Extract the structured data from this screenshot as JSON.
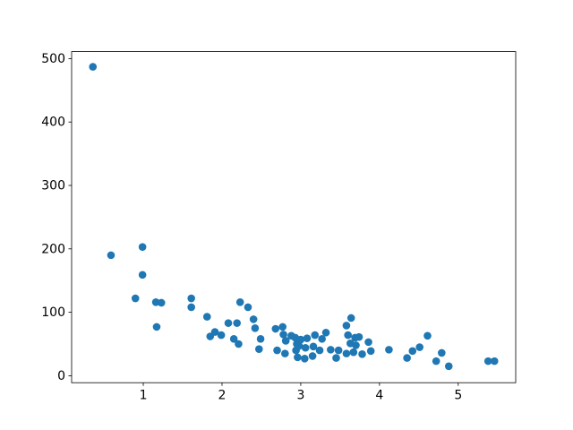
{
  "figure": {
    "background_color": "#ffffff",
    "plot_background_color": "#ffffff",
    "spine_color": "#000000",
    "tick_color": "#000000",
    "tick_label_color": "#000000"
  },
  "chart_data": {
    "type": "scatter",
    "title": "",
    "xlabel": "",
    "ylabel": "",
    "xlim": [
      0.09,
      5.73
    ],
    "ylim": [
      -11,
      511
    ],
    "xticks": [
      1,
      2,
      3,
      4,
      5
    ],
    "yticks": [
      0,
      100,
      200,
      300,
      400,
      500
    ],
    "grid": false,
    "legend_position": "none",
    "marker": {
      "color": "#1f77b4",
      "shape": "circle",
      "radius_px": 4.3
    },
    "points": [
      [
        0.36,
        487
      ],
      [
        0.59,
        190
      ],
      [
        0.9,
        122
      ],
      [
        0.99,
        203
      ],
      [
        0.99,
        159
      ],
      [
        1.16,
        116
      ],
      [
        1.17,
        77
      ],
      [
        1.23,
        115
      ],
      [
        1.61,
        122
      ],
      [
        1.61,
        108
      ],
      [
        1.81,
        93
      ],
      [
        1.85,
        62
      ],
      [
        1.91,
        69
      ],
      [
        1.99,
        64
      ],
      [
        2.08,
        83
      ],
      [
        2.15,
        58
      ],
      [
        2.19,
        83
      ],
      [
        2.21,
        50
      ],
      [
        2.23,
        116
      ],
      [
        2.33,
        108
      ],
      [
        2.4,
        89
      ],
      [
        2.42,
        75
      ],
      [
        2.47,
        42
      ],
      [
        2.49,
        58
      ],
      [
        2.68,
        74
      ],
      [
        2.7,
        40
      ],
      [
        2.77,
        77
      ],
      [
        2.78,
        65
      ],
      [
        2.8,
        35
      ],
      [
        2.81,
        55
      ],
      [
        2.88,
        63
      ],
      [
        2.93,
        60
      ],
      [
        2.94,
        40
      ],
      [
        2.95,
        50
      ],
      [
        2.96,
        29
      ],
      [
        2.98,
        47
      ],
      [
        3.0,
        57
      ],
      [
        3.05,
        27
      ],
      [
        3.06,
        44
      ],
      [
        3.08,
        59
      ],
      [
        3.15,
        31
      ],
      [
        3.16,
        46
      ],
      [
        3.18,
        64
      ],
      [
        3.24,
        40
      ],
      [
        3.27,
        58
      ],
      [
        3.32,
        68
      ],
      [
        3.38,
        41
      ],
      [
        3.45,
        28
      ],
      [
        3.48,
        40
      ],
      [
        3.58,
        79
      ],
      [
        3.58,
        35
      ],
      [
        3.6,
        64
      ],
      [
        3.63,
        51
      ],
      [
        3.64,
        91
      ],
      [
        3.67,
        37
      ],
      [
        3.69,
        60
      ],
      [
        3.7,
        48
      ],
      [
        3.74,
        61
      ],
      [
        3.78,
        34
      ],
      [
        3.86,
        53
      ],
      [
        3.89,
        39
      ],
      [
        4.12,
        41
      ],
      [
        4.35,
        28
      ],
      [
        4.42,
        39
      ],
      [
        4.51,
        45
      ],
      [
        4.61,
        63
      ],
      [
        4.72,
        23
      ],
      [
        4.79,
        36
      ],
      [
        4.88,
        15
      ],
      [
        5.38,
        23
      ],
      [
        5.46,
        23
      ]
    ]
  }
}
